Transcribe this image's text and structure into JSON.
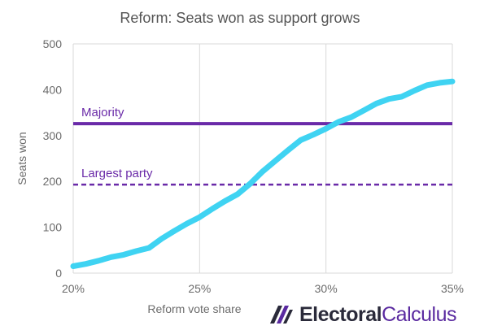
{
  "chart_data": {
    "type": "line",
    "title": "Reform: Seats won as support grows",
    "xlabel": "Reform vote share",
    "ylabel": "Seats won",
    "xlim": [
      20,
      35
    ],
    "ylim": [
      0,
      500
    ],
    "x_ticks": [
      "20%",
      "25%",
      "30%",
      "35%"
    ],
    "y_ticks": [
      "0",
      "100",
      "200",
      "300",
      "400",
      "500"
    ],
    "grid": {
      "vertical": true,
      "horizontal": false
    },
    "series": [
      {
        "color": "#3fd3f2",
        "x": [
          20,
          20.5,
          21,
          21.5,
          22,
          22.5,
          23,
          23.5,
          24,
          24.5,
          25,
          25.5,
          26,
          26.5,
          27,
          27.5,
          28,
          28.5,
          29,
          29.5,
          30,
          30.5,
          31,
          31.5,
          32,
          32.5,
          33,
          33.5,
          34,
          34.5,
          35
        ],
        "y": [
          15,
          20,
          27,
          35,
          40,
          48,
          55,
          75,
          92,
          108,
          122,
          140,
          157,
          172,
          195,
          222,
          245,
          268,
          290,
          302,
          315,
          330,
          340,
          355,
          370,
          380,
          385,
          398,
          410,
          415,
          418
        ]
      }
    ],
    "reference_lines": [
      {
        "label": "Majority",
        "y": 326,
        "style": "solid",
        "color": "#6a2aa8"
      },
      {
        "label": "Largest party",
        "y": 193,
        "style": "dashed",
        "color": "#6a2aa8"
      }
    ]
  },
  "branding": {
    "logo_part1": "Electoral",
    "logo_part2": "Calculus"
  }
}
